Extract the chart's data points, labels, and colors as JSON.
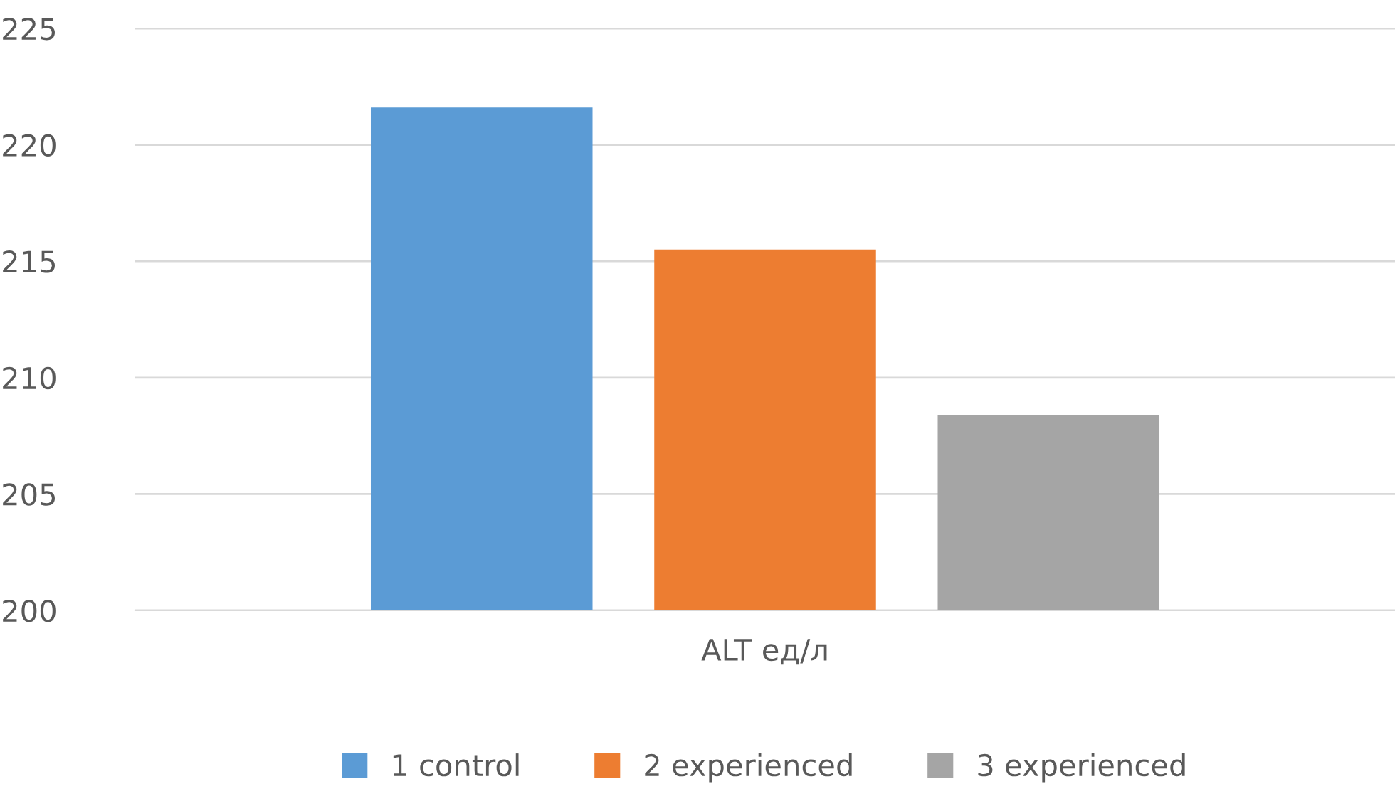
{
  "chart_data": {
    "type": "bar",
    "categories": [
      "ALT ед/л"
    ],
    "series": [
      {
        "name": "1 control",
        "color": "#5b9bd5",
        "values": [
          221.6
        ]
      },
      {
        "name": "2 experienced",
        "color": "#ed7d31",
        "values": [
          215.5
        ]
      },
      {
        "name": "3 experienced",
        "color": "#a5a5a5",
        "values": [
          208.4
        ]
      }
    ],
    "ylim": [
      200,
      225
    ],
    "yticks": [
      200,
      205,
      210,
      215,
      220,
      225
    ],
    "grid": "y",
    "legend": "bottom"
  }
}
